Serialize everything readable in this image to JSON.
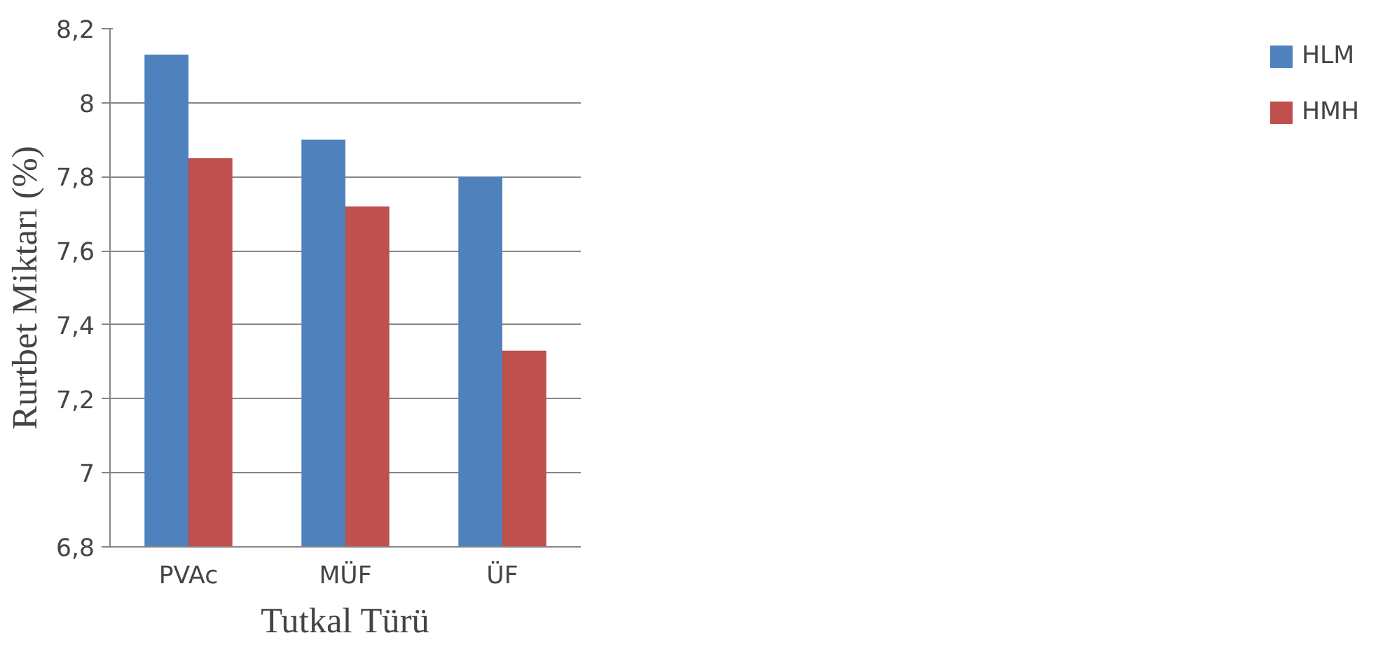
{
  "chart_data": {
    "type": "bar",
    "xlabel": "Tutkal Türü",
    "ylabel": "Rurtbet Miktarı (%)",
    "categories": [
      "PVAc",
      "MÜF",
      "ÜF"
    ],
    "series": [
      {
        "name": "HLM",
        "color": "#4f81bd",
        "values": [
          8.13,
          7.9,
          7.8
        ]
      },
      {
        "name": "HMH",
        "color": "#c0504d",
        "values": [
          7.85,
          7.72,
          7.33
        ]
      }
    ],
    "ylim": [
      6.8,
      8.2
    ],
    "yticks": [
      {
        "value": 6.8,
        "label": "6,8"
      },
      7,
      {
        "value": 7.2,
        "label": "7,2"
      },
      {
        "value": 7.4,
        "label": "7,4"
      },
      {
        "value": 7.6,
        "label": "7,6"
      },
      {
        "value": 7.8,
        "label": "7,8"
      },
      8,
      {
        "value": 8.2,
        "label": "8,2"
      }
    ],
    "grid": "y",
    "legend": "right"
  }
}
